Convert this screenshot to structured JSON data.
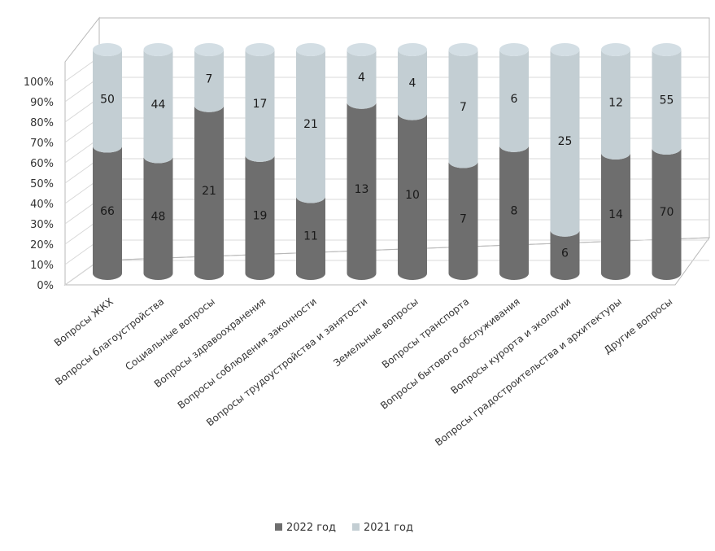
{
  "chart_data": {
    "type": "bar",
    "stacking": "percent",
    "categories": [
      "Вопросы ЖКХ",
      "Вопросы благоустройства",
      "Социальные вопросы",
      "Вопросы здравоохранения",
      "Вопросы соблюдения законности",
      "Вопросы трудоустройства и занятости",
      "Земельные вопросы",
      "Вопросы транспорта",
      "Вопросы бытового обслуживания",
      "Вопросы курорта и экологии",
      "Вопросы градостроительства и архитектуры",
      "Другие вопросы"
    ],
    "series": [
      {
        "name": "2022 год",
        "color": "#6e6e6e",
        "values": [
          66,
          48,
          21,
          19,
          11,
          13,
          10,
          7,
          8,
          6,
          14,
          70
        ]
      },
      {
        "name": "2021 год",
        "color": "#c3ced3",
        "values": [
          50,
          44,
          7,
          17,
          21,
          4,
          4,
          7,
          6,
          25,
          12,
          55
        ]
      }
    ],
    "ylim": [
      0,
      100
    ],
    "yticks": [
      "0%",
      "10%",
      "20%",
      "30%",
      "40%",
      "50%",
      "60%",
      "70%",
      "80%",
      "90%",
      "100%"
    ],
    "legend_position": "bottom",
    "grid": true,
    "style": "3d-cylinder"
  }
}
